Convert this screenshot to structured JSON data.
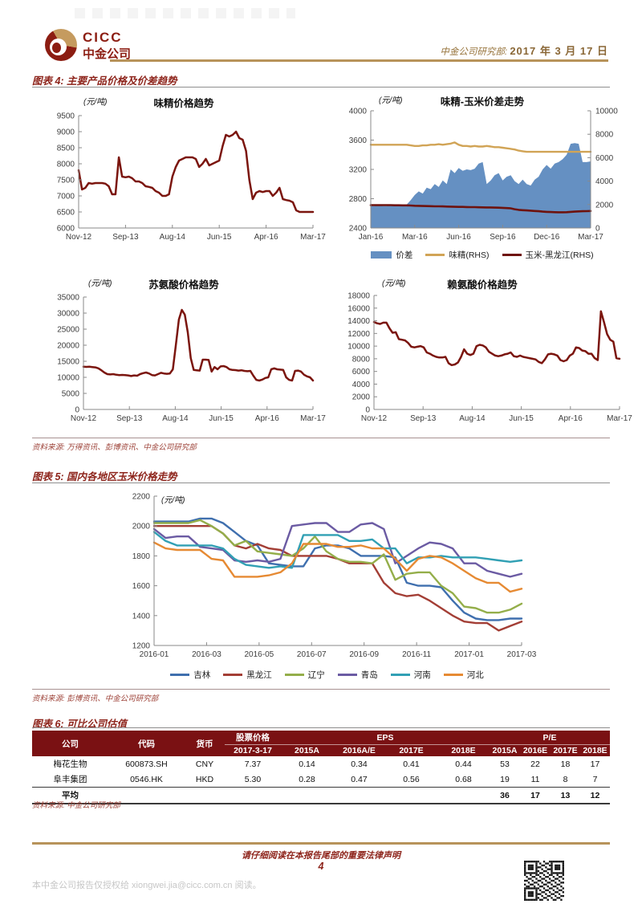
{
  "header": {
    "logo_en": "CICC",
    "logo_cn": "中金公司",
    "dept": "中金公司研究部:",
    "date": "2017 年 3 月 17 日"
  },
  "figure4": {
    "heading": "图表 4: 主要产品价格及价差趋势",
    "source": "资料来源: 万得资讯、彭博资讯、中金公司研究部"
  },
  "figure5": {
    "heading": "图表 5: 国内各地区玉米价格走势",
    "source": "资料来源: 彭博资讯、中金公司研究部"
  },
  "figure6": {
    "heading": "图表 6: 可比公司估值",
    "source": "资料来源: 中金公司研究部",
    "table": {
      "col_company": "公司",
      "col_code": "代码",
      "col_currency": "货币",
      "col_price_group": "股票价格",
      "col_price_sub": "2017-3-17",
      "col_eps_group": "EPS",
      "col_pe_group": "P/E",
      "eps_cols": [
        "2015A",
        "2016A/E",
        "2017E",
        "2018E"
      ],
      "pe_cols": [
        "2015A",
        "2016E",
        "2017E",
        "2018E"
      ],
      "rows": [
        {
          "company": "梅花生物",
          "code": "600873.SH",
          "currency": "CNY",
          "price": "7.37",
          "eps": [
            "0.14",
            "0.34",
            "0.41",
            "0.44"
          ],
          "pe": [
            "53",
            "22",
            "18",
            "17"
          ]
        },
        {
          "company": "阜丰集团",
          "code": "0546.HK",
          "currency": "HKD",
          "price": "5.30",
          "eps": [
            "0.28",
            "0.47",
            "0.56",
            "0.68"
          ],
          "pe": [
            "19",
            "11",
            "8",
            "7"
          ]
        }
      ],
      "avg_row": {
        "label": "平均",
        "pe": [
          "36",
          "17",
          "13",
          "12"
        ]
      }
    }
  },
  "footer": {
    "legal": "请仔细阅读在本报告尾部的重要法律声明",
    "page": "4",
    "authorization": "本中金公司报告仅授权给 xiongwei.jia@cicc.com.cn 阅读。"
  },
  "chart_data": [
    {
      "id": "msg_price",
      "type": "line",
      "title": "味精价格趋势",
      "unit": "(元/吨)",
      "ylim": [
        6000,
        9500
      ],
      "yticks": [
        6000,
        6500,
        7000,
        7500,
        8000,
        8500,
        9000,
        9500
      ],
      "xticklabels": [
        "Nov-12",
        "Sep-13",
        "Aug-14",
        "Jun-15",
        "Apr-16",
        "Mar-17"
      ],
      "grid": false,
      "legend_position": "none",
      "series": [
        {
          "name": "味精价格",
          "kind": "line",
          "axis": "left",
          "color": "#7B150E",
          "width": 2.5,
          "values": [
            7800,
            7200,
            7250,
            7400,
            7380,
            7400,
            7400,
            7400,
            7380,
            7300,
            7050,
            7050,
            8200,
            7600,
            7580,
            7600,
            7550,
            7450,
            7450,
            7400,
            7300,
            7280,
            7250,
            7150,
            7100,
            7000,
            7000,
            7050,
            7600,
            7900,
            8100,
            8150,
            8200,
            8200,
            8200,
            8150,
            7900,
            8000,
            8150,
            7950,
            8000,
            8050,
            8100,
            8550,
            8900,
            8850,
            8900,
            9000,
            8800,
            8750,
            8400,
            7500,
            6900,
            7100,
            7150,
            7120,
            7150,
            7150,
            7000,
            7100,
            7250,
            6900,
            6870,
            6850,
            6800,
            6550,
            6500,
            6500,
            6500,
            6500,
            6500
          ]
        }
      ]
    },
    {
      "id": "spread",
      "type": "area",
      "title": "味精-玉米价差走势",
      "unit": "(元/吨)",
      "ylim": [
        2400,
        4000
      ],
      "yticks": [
        2400,
        2800,
        3200,
        3600,
        4000
      ],
      "y2lim": [
        0,
        10000
      ],
      "y2ticks": [
        0,
        2000,
        4000,
        6000,
        8000,
        10000
      ],
      "xticklabels": [
        "Jan-16",
        "Mar-16",
        "Jun-16",
        "Sep-16",
        "Dec-16",
        "Mar-17"
      ],
      "grid": false,
      "legend_position": "bottom",
      "series": [
        {
          "name": "价差",
          "kind": "area",
          "axis": "left",
          "color": "#6590C2",
          "values": [
            2700,
            2700,
            2710,
            2700,
            2700,
            2710,
            2700,
            2700,
            2700,
            2720,
            2780,
            2850,
            2900,
            2870,
            2950,
            2930,
            3000,
            2960,
            3050,
            3000,
            3200,
            3150,
            3220,
            3180,
            3200,
            3190,
            3210,
            3280,
            3300,
            3000,
            3050,
            3120,
            3150,
            3050,
            3100,
            3120,
            3040,
            3000,
            3060,
            3000,
            2980,
            3060,
            3100,
            3200,
            3260,
            3210,
            3280,
            3300,
            3340,
            3400,
            3550,
            3560,
            3550,
            3300,
            3300,
            3310
          ]
        },
        {
          "name": "味精(RHS)",
          "kind": "line",
          "axis": "right",
          "color": "#D1A456",
          "width": 2.4,
          "values": [
            7100,
            7100,
            7100,
            7100,
            7100,
            7100,
            7100,
            7100,
            7100,
            7100,
            7050,
            7000,
            7000,
            7050,
            7050,
            7100,
            7100,
            7150,
            7100,
            7150,
            7200,
            7300,
            7100,
            7000,
            7000,
            6950,
            7000,
            6950,
            6950,
            7000,
            6950,
            6900,
            6900,
            6850,
            6800,
            6750,
            6700,
            6600,
            6550,
            6500,
            6500,
            6500,
            6500,
            6500,
            6500,
            6500,
            6500,
            6500,
            6500,
            6500,
            6500,
            6500,
            6500,
            6500,
            6500,
            6500
          ]
        },
        {
          "name": "玉米-黑龙江(RHS)",
          "kind": "line",
          "axis": "right",
          "color": "#6E120D",
          "width": 2.6,
          "values": [
            1950,
            1950,
            1950,
            1950,
            1950,
            1950,
            1940,
            1940,
            1930,
            1930,
            1920,
            1900,
            1890,
            1880,
            1870,
            1860,
            1850,
            1850,
            1840,
            1830,
            1820,
            1810,
            1800,
            1800,
            1790,
            1780,
            1780,
            1770,
            1760,
            1750,
            1750,
            1740,
            1730,
            1720,
            1700,
            1680,
            1600,
            1550,
            1520,
            1500,
            1480,
            1450,
            1430,
            1400,
            1380,
            1360,
            1350,
            1340,
            1340,
            1350,
            1380,
            1400,
            1420,
            1430,
            1440,
            1450
          ]
        }
      ],
      "legend": [
        {
          "label": "价差",
          "swatch": "area",
          "color": "#6590C2"
        },
        {
          "label": "味精(RHS)",
          "swatch": "line",
          "color": "#D1A456"
        },
        {
          "label": "玉米-黑龙江(RHS)",
          "swatch": "line",
          "color": "#6E120D"
        }
      ]
    },
    {
      "id": "threonine",
      "type": "line",
      "title": "苏氨酸价格趋势",
      "unit": "(元/吨)",
      "ylim": [
        0,
        35000
      ],
      "yticks": [
        0,
        5000,
        10000,
        15000,
        20000,
        25000,
        30000,
        35000
      ],
      "xticklabels": [
        "Nov-12",
        "Sep-13",
        "Aug-14",
        "Jun-15",
        "Apr-16",
        "Mar-17"
      ],
      "grid": false,
      "legend_position": "none",
      "series": [
        {
          "name": "苏氨酸价格",
          "kind": "line",
          "axis": "left",
          "color": "#7B150E",
          "width": 2.5,
          "values": [
            13300,
            13250,
            13300,
            13200,
            13100,
            12800,
            12200,
            11500,
            11000,
            10900,
            11000,
            10800,
            10700,
            10750,
            10700,
            10600,
            10400,
            10600,
            10500,
            11000,
            11300,
            11500,
            11200,
            10700,
            10600,
            11000,
            11400,
            11200,
            11100,
            11200,
            12500,
            20000,
            28000,
            31000,
            29500,
            24000,
            16000,
            12300,
            12200,
            12100,
            15500,
            15500,
            15400,
            11800,
            13200,
            12500,
            13400,
            13500,
            13200,
            12500,
            12300,
            12250,
            12100,
            12200,
            12000,
            11900,
            12000,
            10500,
            9200,
            9000,
            9300,
            9800,
            10000,
            12500,
            12800,
            12500,
            12400,
            12300,
            10000,
            9200,
            9000,
            12000,
            12100,
            11800,
            10800,
            10300,
            10000,
            9000
          ]
        }
      ]
    },
    {
      "id": "lysine",
      "type": "line",
      "title": "赖氨酸价格趋势",
      "unit": "(元/吨)",
      "ylim": [
        0,
        18000
      ],
      "yticks": [
        0,
        2000,
        4000,
        6000,
        8000,
        10000,
        12000,
        14000,
        16000,
        18000
      ],
      "xticklabels": [
        "Nov-12",
        "Sep-13",
        "Aug-14",
        "Jun-15",
        "Apr-16",
        "Mar-17"
      ],
      "grid": false,
      "legend_position": "none",
      "series": [
        {
          "name": "赖氨酸价格",
          "kind": "line",
          "axis": "left",
          "color": "#7B150E",
          "width": 2.5,
          "values": [
            13800,
            13600,
            13500,
            13700,
            13700,
            12800,
            12100,
            12200,
            11100,
            11000,
            10900,
            10500,
            9900,
            9800,
            9900,
            10000,
            9800,
            9000,
            8800,
            8500,
            8300,
            8200,
            8200,
            8300,
            7300,
            7000,
            7100,
            7400,
            8300,
            9500,
            8800,
            8600,
            8800,
            10000,
            10200,
            10100,
            9800,
            9100,
            8800,
            8500,
            8400,
            8500,
            8700,
            8800,
            9000,
            8400,
            8300,
            8500,
            8300,
            8200,
            8100,
            8000,
            7900,
            7500,
            7300,
            7900,
            8700,
            8800,
            8700,
            8500,
            7800,
            7600,
            7800,
            8500,
            8800,
            9800,
            9700,
            9300,
            9200,
            8800,
            8800,
            8100,
            7800,
            15500,
            13800,
            11900,
            11000,
            10700,
            8100,
            8000
          ]
        }
      ]
    },
    {
      "id": "corn",
      "type": "line",
      "title": "",
      "unit": "(元/吨)",
      "ylim": [
        1200,
        2200
      ],
      "yticks": [
        1200,
        1400,
        1600,
        1800,
        2000,
        2200
      ],
      "xticklabels": [
        "2016-01",
        "2016-03",
        "2016-05",
        "2016-07",
        "2016-09",
        "2016-11",
        "2017-01",
        "2017-03"
      ],
      "grid": false,
      "legend_position": "bottom",
      "series": [
        {
          "name": "吉林",
          "kind": "line",
          "axis": "left",
          "color": "#3F6FAE",
          "width": 2.4,
          "values": [
            2030,
            2030,
            2030,
            2030,
            2050,
            2050,
            2020,
            1960,
            1900,
            1870,
            1750,
            1740,
            1730,
            1730,
            1850,
            1870,
            1870,
            1850,
            1800,
            1800,
            1800,
            1790,
            1620,
            1600,
            1600,
            1590,
            1500,
            1420,
            1380,
            1370,
            1370,
            1380,
            1380
          ]
        },
        {
          "name": "黑龙江",
          "kind": "line",
          "axis": "left",
          "color": "#A33E35",
          "width": 2.4,
          "values": [
            2000,
            2000,
            2000,
            2000,
            2000,
            2000,
            1950,
            1870,
            1850,
            1880,
            1850,
            1840,
            1800,
            1800,
            1800,
            1800,
            1780,
            1750,
            1750,
            1750,
            1620,
            1550,
            1530,
            1540,
            1500,
            1450,
            1400,
            1360,
            1350,
            1350,
            1300,
            1330,
            1360
          ]
        },
        {
          "name": "辽宁",
          "kind": "line",
          "axis": "left",
          "color": "#94AE4A",
          "width": 2.4,
          "values": [
            2020,
            2020,
            2020,
            2020,
            2040,
            2000,
            1950,
            1870,
            1900,
            1830,
            1820,
            1810,
            1800,
            1850,
            1930,
            1830,
            1780,
            1760,
            1760,
            1750,
            1810,
            1640,
            1680,
            1690,
            1690,
            1600,
            1550,
            1460,
            1450,
            1420,
            1420,
            1440,
            1480
          ]
        },
        {
          "name": "青岛",
          "kind": "line",
          "axis": "left",
          "color": "#6B5BA3",
          "width": 2.4,
          "values": [
            1980,
            1920,
            1930,
            1930,
            1860,
            1850,
            1840,
            1770,
            1760,
            1770,
            1760,
            1780,
            2000,
            2010,
            2020,
            2020,
            1960,
            1960,
            2010,
            2020,
            1980,
            1750,
            1800,
            1850,
            1890,
            1880,
            1850,
            1750,
            1750,
            1700,
            1680,
            1660,
            1680
          ]
        },
        {
          "name": "河南",
          "kind": "line",
          "axis": "left",
          "color": "#31A0B4",
          "width": 2.4,
          "values": [
            1960,
            1900,
            1870,
            1870,
            1870,
            1870,
            1850,
            1780,
            1740,
            1730,
            1720,
            1730,
            1720,
            1940,
            1940,
            1940,
            1940,
            1900,
            1900,
            1910,
            1850,
            1850,
            1750,
            1790,
            1790,
            1800,
            1790,
            1790,
            1790,
            1780,
            1770,
            1760,
            1770
          ]
        },
        {
          "name": "河北",
          "kind": "line",
          "axis": "left",
          "color": "#E68A33",
          "width": 2.4,
          "values": [
            1890,
            1850,
            1840,
            1840,
            1840,
            1780,
            1770,
            1660,
            1660,
            1660,
            1670,
            1690,
            1750,
            1880,
            1880,
            1880,
            1860,
            1860,
            1870,
            1850,
            1850,
            1780,
            1700,
            1780,
            1800,
            1790,
            1750,
            1700,
            1650,
            1620,
            1620,
            1560,
            1580
          ]
        }
      ],
      "legend": [
        {
          "label": "吉林",
          "swatch": "line",
          "color": "#3F6FAE"
        },
        {
          "label": "黑龙江",
          "swatch": "line",
          "color": "#A33E35"
        },
        {
          "label": "辽宁",
          "swatch": "line",
          "color": "#94AE4A"
        },
        {
          "label": "青岛",
          "swatch": "line",
          "color": "#6B5BA3"
        },
        {
          "label": "河南",
          "swatch": "line",
          "color": "#31A0B4"
        },
        {
          "label": "河北",
          "swatch": "line",
          "color": "#E68A33"
        }
      ]
    }
  ]
}
